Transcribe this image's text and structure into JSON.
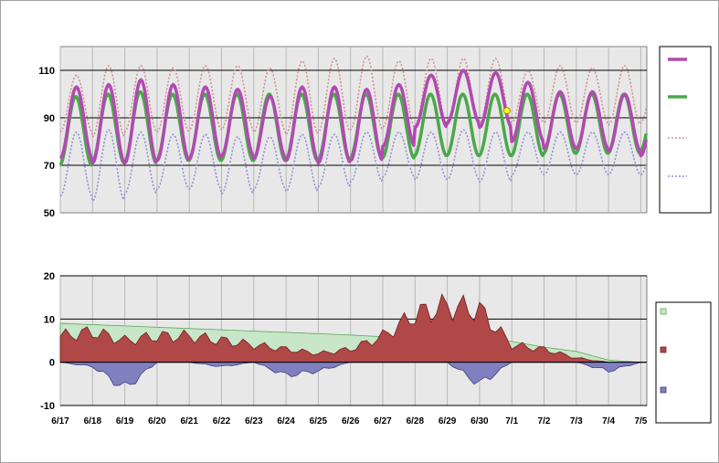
{
  "chart_data": [
    {
      "type": "line",
      "name_key": "temperature",
      "ylim": [
        50,
        120
      ],
      "yticks": [
        50,
        70,
        90,
        110
      ],
      "x_labels": [
        "6/17",
        "6/18",
        "6/19",
        "6/20",
        "6/21",
        "6/22",
        "6/23",
        "6/24",
        "6/25",
        "6/26",
        "6/27",
        "6/28",
        "6/29",
        "6/30",
        "7/1",
        "7/2",
        "7/3",
        "7/4",
        "7/5"
      ],
      "grid": true,
      "legend": "right",
      "series": [
        {
          "key": "actual",
          "color": "#b04ab0",
          "style": "solid-thick",
          "daily_max": [
            103,
            104,
            106,
            104,
            103,
            102,
            99,
            103,
            103,
            102,
            104,
            108,
            110,
            109,
            105,
            101,
            101,
            100,
            101
          ],
          "daily_min": [
            73,
            71,
            71,
            72,
            73,
            74,
            73,
            72,
            71,
            72,
            78,
            86,
            88,
            86,
            80,
            77,
            77,
            76,
            74
          ]
        },
        {
          "key": "normal",
          "color": "#4aa84a",
          "style": "solid-thick",
          "daily_max": [
            99,
            100,
            101,
            100,
            100,
            100,
            100,
            100,
            100,
            100,
            100,
            100,
            100,
            100,
            100,
            100,
            100,
            100,
            100
          ],
          "daily_min": [
            70,
            71,
            71,
            72,
            72,
            72,
            72,
            72,
            72,
            73,
            73,
            74,
            74,
            74,
            74,
            75,
            75,
            75,
            76
          ]
        },
        {
          "key": "record_high",
          "color": "#d49090",
          "style": "dotted",
          "daily_max": [
            108,
            112,
            112,
            111,
            112,
            112,
            111,
            114,
            115,
            116,
            114,
            115,
            115,
            115,
            110,
            112,
            111,
            112,
            112
          ],
          "daily_min": [
            84,
            82,
            84,
            84,
            85,
            85,
            84,
            83,
            84,
            85,
            86,
            87,
            87,
            88,
            88,
            88,
            88,
            87,
            88
          ]
        },
        {
          "key": "record_low",
          "color": "#9090d8",
          "style": "dotted",
          "daily_max": [
            84,
            85,
            84,
            83,
            83,
            82,
            82,
            83,
            83,
            84,
            84,
            84,
            85,
            84,
            84,
            84,
            84,
            84,
            84
          ],
          "daily_min": [
            57,
            55,
            58,
            60,
            60,
            58,
            60,
            59,
            61,
            63,
            65,
            64,
            64,
            63,
            66,
            66,
            66,
            66,
            66
          ]
        }
      ],
      "marker": {
        "date": "6/30",
        "value": 93,
        "color": "#ffff00"
      }
    },
    {
      "type": "area",
      "name_key": "departure",
      "ylim": [
        -10,
        20
      ],
      "yticks": [
        -10,
        0,
        10,
        20
      ],
      "x_labels": [
        "6/17",
        "6/18",
        "6/19",
        "6/20",
        "6/21",
        "6/22",
        "6/23",
        "6/24",
        "6/25",
        "6/26",
        "6/27",
        "6/28",
        "6/29",
        "6/30",
        "7/1",
        "7/2",
        "7/3",
        "7/4",
        "7/5"
      ],
      "grid": true,
      "legend": "right",
      "series": [
        {
          "key": "cumulative",
          "color": "#c8e6c8",
          "stroke": "#58a858",
          "values": [
            9,
            8.7,
            8.4,
            8.1,
            7.8,
            7.5,
            7.2,
            6.9,
            6.6,
            6.3,
            5.9,
            5.7,
            5.5,
            5.2,
            4.8,
            3.5,
            2.5,
            0.5,
            0
          ]
        },
        {
          "key": "daily_positive",
          "color": "#b04848",
          "stroke": "#702020",
          "values": [
            6,
            7,
            5,
            6,
            6,
            5,
            4,
            3,
            2,
            3,
            6,
            11,
            13,
            12,
            4,
            3,
            1,
            0,
            0
          ]
        },
        {
          "key": "daily_negative",
          "color": "#8080c0",
          "stroke": "#404080",
          "values": [
            0,
            -1,
            -6,
            0,
            0,
            -1,
            0,
            -3,
            -2,
            0,
            0,
            0,
            0,
            -5,
            0,
            0,
            0,
            -2,
            0
          ]
        }
      ]
    }
  ],
  "colors": {
    "plot_bg": "#e8e8e8",
    "grid_v": "#b8b8b8",
    "grid_h": "#000000",
    "marker": "#ffff00"
  }
}
